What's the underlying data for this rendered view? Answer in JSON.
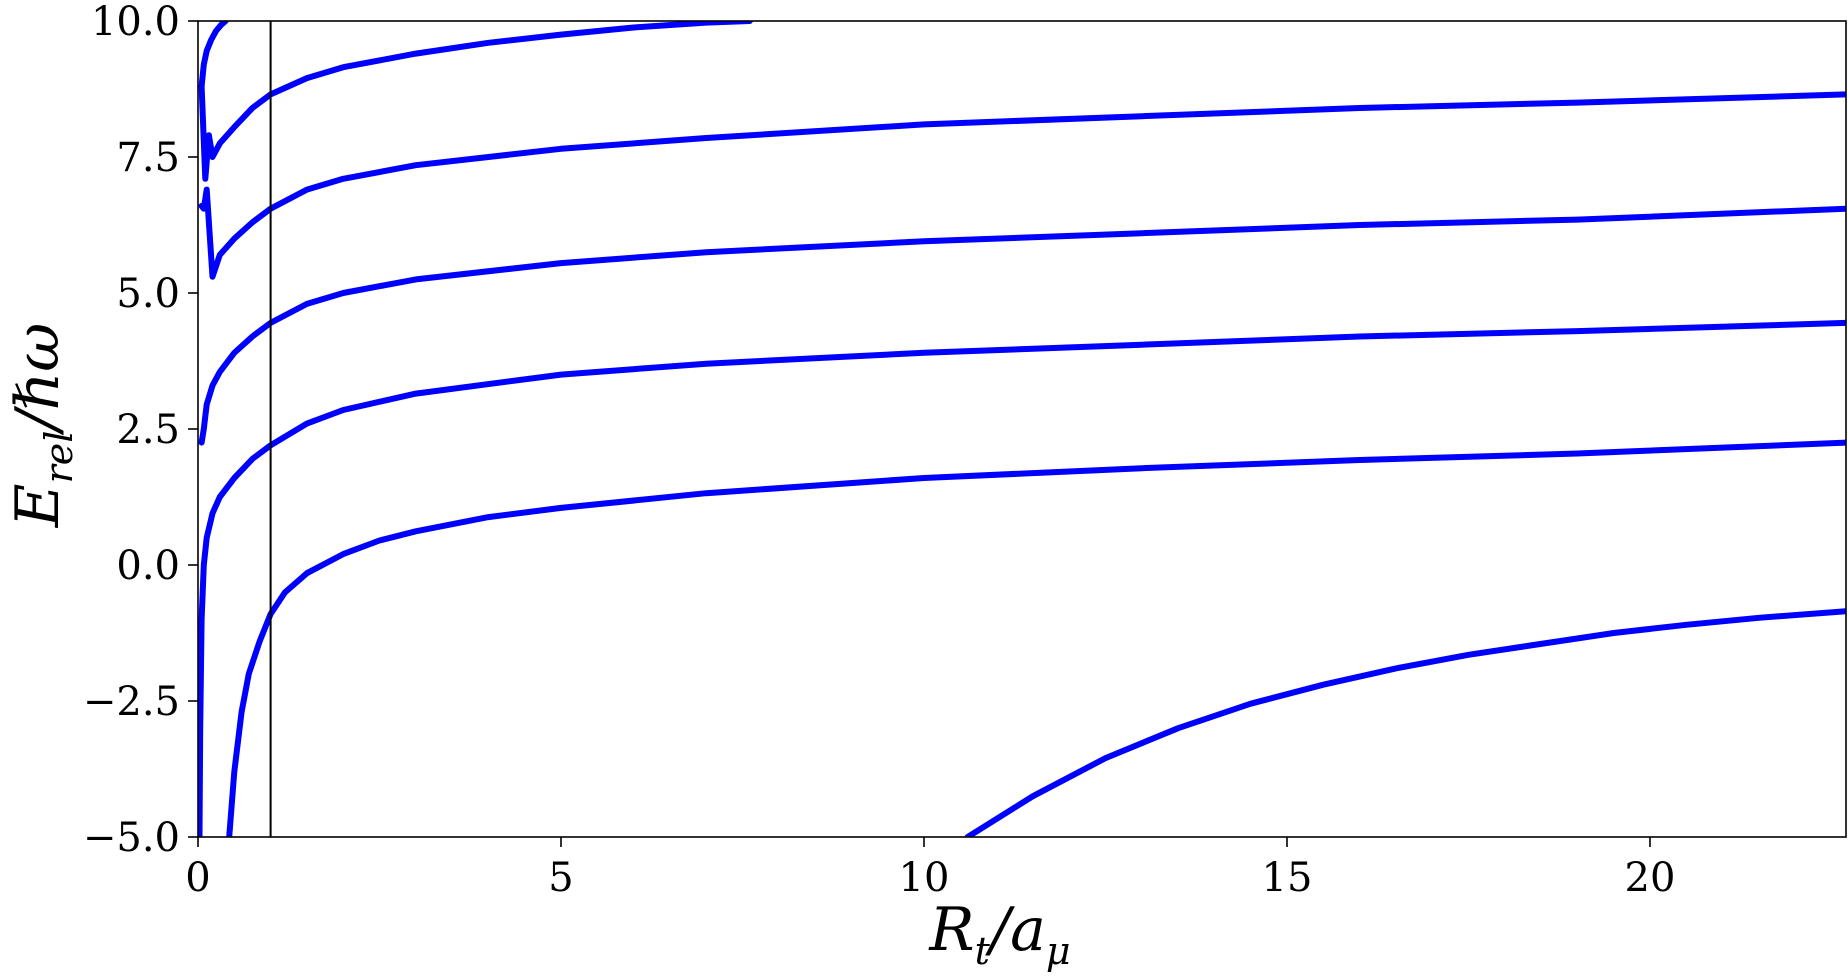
{
  "chart_data": {
    "type": "scatter",
    "title": "",
    "xlabel": {
      "base": "R",
      "base_sub": "t",
      "sep": "/",
      "denom": "a",
      "denom_sub": "μ"
    },
    "ylabel": {
      "base": "E",
      "base_sub": "rel",
      "sep": "/",
      "denom": "ℏω"
    },
    "xlim": [
      0,
      22.7
    ],
    "ylim": [
      -5.0,
      10.0
    ],
    "xticks": [
      0,
      5,
      10,
      15,
      20
    ],
    "xtick_labels": [
      "0",
      "5",
      "10",
      "15",
      "20"
    ],
    "yticks": [
      -5.0,
      -2.5,
      0.0,
      2.5,
      5.0,
      7.5,
      10.0
    ],
    "ytick_labels": [
      "−5.0",
      "−2.5",
      "0.0",
      "2.5",
      "5.0",
      "7.5",
      "10.0"
    ],
    "grid": false,
    "legend": "none",
    "series_color": "#0000ff",
    "vline": {
      "x": 1.0,
      "color": "#000000"
    },
    "series": [
      {
        "x": [
          10.6,
          11.5,
          12.5,
          13.5,
          14.5,
          15.5,
          16.5,
          17.5,
          18.5,
          19.5,
          20.5,
          21.5,
          22.7
        ],
        "y": [
          -5.0,
          -4.25,
          -3.55,
          -3.0,
          -2.55,
          -2.2,
          -1.9,
          -1.65,
          -1.45,
          -1.25,
          -1.1,
          -0.97,
          -0.85
        ]
      },
      {
        "x": [
          0.43,
          0.5,
          0.6,
          0.7,
          0.85,
          1.0,
          1.2,
          1.5,
          2.0,
          2.5,
          3.0,
          4.0,
          5.0,
          7.0,
          10.0,
          13.0,
          16.0,
          19.0,
          22.7
        ],
        "y": [
          -5.0,
          -3.8,
          -2.7,
          -2.0,
          -1.4,
          -0.9,
          -0.5,
          -0.15,
          0.2,
          0.45,
          0.62,
          0.88,
          1.05,
          1.32,
          1.6,
          1.78,
          1.93,
          2.05,
          2.25
        ]
      },
      {
        "x": [
          0.02,
          0.03,
          0.05,
          0.08,
          0.12,
          0.2,
          0.3,
          0.5,
          0.75,
          1.0,
          1.5,
          2.0,
          3.0,
          5.0,
          7.0,
          10.0,
          13.0,
          16.0,
          19.0,
          22.7
        ],
        "y": [
          -5.0,
          -3.0,
          -1.0,
          0.0,
          0.5,
          0.95,
          1.25,
          1.6,
          1.95,
          2.2,
          2.6,
          2.85,
          3.15,
          3.5,
          3.7,
          3.9,
          4.05,
          4.2,
          4.3,
          4.45
        ]
      },
      {
        "x": [
          0.05,
          0.08,
          0.12,
          0.2,
          0.3,
          0.5,
          0.75,
          1.0,
          1.5,
          2.0,
          3.0,
          5.0,
          7.0,
          10.0,
          13.0,
          16.0,
          19.0,
          22.7
        ],
        "y": [
          2.25,
          2.5,
          2.95,
          3.3,
          3.55,
          3.9,
          4.2,
          4.45,
          4.8,
          5.0,
          5.25,
          5.55,
          5.75,
          5.95,
          6.1,
          6.25,
          6.35,
          6.55
        ]
      },
      {
        "x": [
          0.05,
          0.08,
          0.12,
          0.2,
          0.3,
          0.5,
          0.75,
          1.0,
          1.5,
          2.0,
          3.0,
          5.0,
          7.0,
          10.0,
          13.0,
          16.0,
          19.0,
          22.7
        ],
        "y": [
          6.6,
          6.55,
          6.9,
          5.3,
          5.7,
          6.0,
          6.3,
          6.55,
          6.9,
          7.1,
          7.35,
          7.65,
          7.85,
          8.1,
          8.25,
          8.4,
          8.5,
          8.65
        ]
      },
      {
        "x": [
          0.05,
          0.1,
          0.15,
          0.2,
          0.3,
          0.5,
          0.75,
          1.0,
          1.5,
          2.0,
          3.0,
          4.0,
          5.0,
          6.0,
          7.0,
          7.6
        ],
        "y": [
          8.8,
          7.1,
          7.9,
          7.5,
          7.75,
          8.05,
          8.4,
          8.65,
          8.95,
          9.15,
          9.4,
          9.6,
          9.75,
          9.88,
          9.97,
          10.0
        ]
      },
      {
        "x": [
          0.05,
          0.08,
          0.12,
          0.18,
          0.25,
          0.32,
          0.38
        ],
        "y": [
          8.8,
          9.2,
          9.45,
          9.65,
          9.82,
          9.93,
          10.0
        ]
      }
    ]
  }
}
